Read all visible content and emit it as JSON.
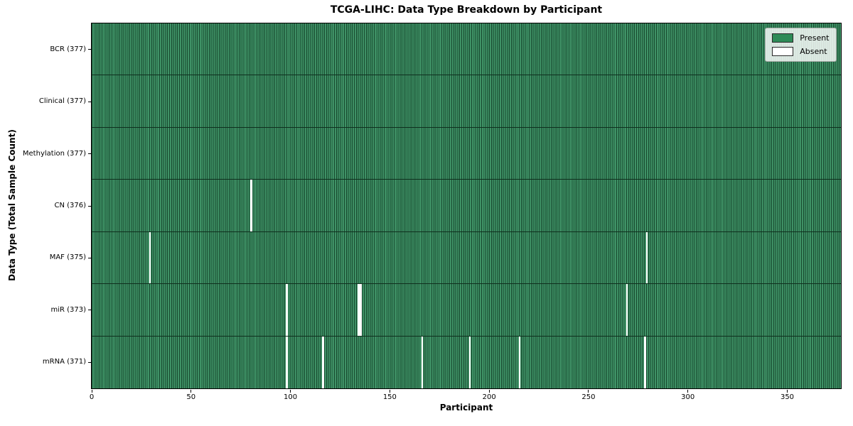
{
  "chart_data": {
    "type": "heatmap",
    "title": "TCGA-LIHC: Data Type Breakdown by Participant",
    "xlabel": "Participant",
    "ylabel": "Data Type (Total Sample Count)",
    "n_participants": 377,
    "x_range": [
      0,
      377
    ],
    "x_ticks": [
      0,
      50,
      100,
      150,
      200,
      250,
      300,
      350
    ],
    "legend": {
      "position": "upper-right",
      "entries": [
        {
          "label": "Present",
          "color": "#2e8b57"
        },
        {
          "label": "Absent",
          "color": "#ffffff"
        }
      ]
    },
    "rows": [
      {
        "label": "BCR (377)",
        "data_type": "BCR",
        "present_count": 377,
        "absent_participants": []
      },
      {
        "label": "Clinical (377)",
        "data_type": "Clinical",
        "present_count": 377,
        "absent_participants": []
      },
      {
        "label": "Methylation (377)",
        "data_type": "Methylation",
        "present_count": 377,
        "absent_participants": []
      },
      {
        "label": "CN (376)",
        "data_type": "CN",
        "present_count": 376,
        "absent_participants": [
          80
        ]
      },
      {
        "label": "MAF (375)",
        "data_type": "MAF",
        "present_count": 375,
        "absent_participants": [
          29,
          279
        ]
      },
      {
        "label": "miR (373)",
        "data_type": "miR",
        "present_count": 373,
        "absent_participants": [
          98,
          134,
          135,
          269
        ]
      },
      {
        "label": "mRNA (371)",
        "data_type": "mRNA",
        "present_count": 371,
        "absent_participants": [
          98,
          116,
          166,
          190,
          215,
          278
        ]
      }
    ],
    "colors": {
      "present": "#2e8b57",
      "present_stripe_light": "#3f9266",
      "cell_edge_dark": "#17482e",
      "absent": "#ffffff",
      "row_divider": "#0f2f1e",
      "plot_border": "#000000",
      "text": "#000000"
    }
  }
}
